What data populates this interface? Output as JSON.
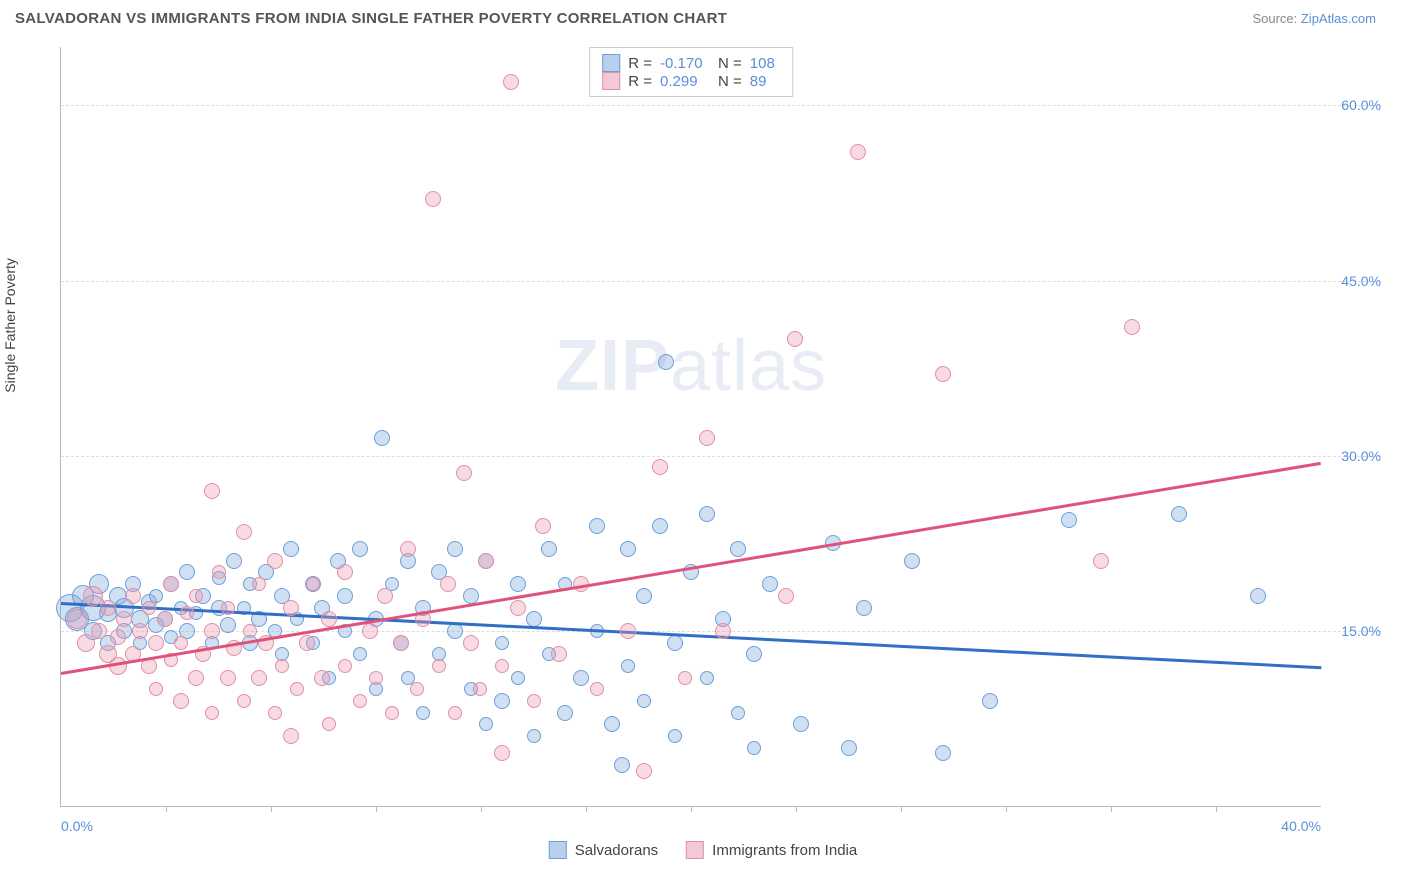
{
  "title": "SALVADORAN VS IMMIGRANTS FROM INDIA SINGLE FATHER POVERTY CORRELATION CHART",
  "source_prefix": "Source: ",
  "source_link": "ZipAtlas.com",
  "ylabel": "Single Father Poverty",
  "watermark_a": "ZIP",
  "watermark_b": "atlas",
  "chart": {
    "type": "scatter",
    "xlim": [
      0,
      40
    ],
    "ylim": [
      0,
      65
    ],
    "x_ticks_minor": [
      3.33,
      6.67,
      10,
      13.33,
      16.67,
      20,
      23.33,
      26.67,
      30,
      33.33,
      36.67
    ],
    "x_tick_labels": [
      {
        "x": 0,
        "text": "0.0%",
        "align": "left"
      },
      {
        "x": 40,
        "text": "40.0%",
        "align": "right"
      }
    ],
    "y_gridlines": [
      15,
      30,
      45,
      60
    ],
    "y_tick_labels": [
      {
        "y": 15,
        "text": "15.0%"
      },
      {
        "y": 30,
        "text": "30.0%"
      },
      {
        "y": 45,
        "text": "45.0%"
      },
      {
        "y": 60,
        "text": "60.0%"
      }
    ],
    "background_color": "#ffffff",
    "grid_color": "#dddddd",
    "axis_color": "#bbbbbb",
    "tick_label_color": "#5b8fd6"
  },
  "series": [
    {
      "name": "Salvadorans",
      "fill": "rgba(120,165,220,0.35)",
      "stroke": "#6f9fd8",
      "line_color": "#2f6fc5",
      "swatch_fill": "#b9d0ec",
      "swatch_stroke": "#6f9fd8",
      "stats": {
        "R": "-0.170",
        "N": "108"
      },
      "trend": {
        "x1": 0,
        "y1": 17.5,
        "x2": 40,
        "y2": 12.0
      },
      "points": [
        {
          "x": 0.3,
          "y": 17,
          "r": 14
        },
        {
          "x": 0.5,
          "y": 16,
          "r": 12
        },
        {
          "x": 0.7,
          "y": 18,
          "r": 11
        },
        {
          "x": 1,
          "y": 17,
          "r": 13
        },
        {
          "x": 1,
          "y": 15,
          "r": 9
        },
        {
          "x": 1.2,
          "y": 19,
          "r": 10
        },
        {
          "x": 1.5,
          "y": 16.5,
          "r": 9
        },
        {
          "x": 1.5,
          "y": 14,
          "r": 8
        },
        {
          "x": 1.8,
          "y": 18,
          "r": 9
        },
        {
          "x": 2,
          "y": 15,
          "r": 8
        },
        {
          "x": 2,
          "y": 17,
          "r": 10
        },
        {
          "x": 2.3,
          "y": 19,
          "r": 8
        },
        {
          "x": 2.5,
          "y": 16,
          "r": 9
        },
        {
          "x": 2.5,
          "y": 14,
          "r": 7
        },
        {
          "x": 2.8,
          "y": 17.5,
          "r": 8
        },
        {
          "x": 3,
          "y": 15.5,
          "r": 8
        },
        {
          "x": 3,
          "y": 18,
          "r": 7
        },
        {
          "x": 3.3,
          "y": 16,
          "r": 8
        },
        {
          "x": 3.5,
          "y": 14.5,
          "r": 7
        },
        {
          "x": 3.5,
          "y": 19,
          "r": 8
        },
        {
          "x": 3.8,
          "y": 17,
          "r": 7
        },
        {
          "x": 4,
          "y": 15,
          "r": 8
        },
        {
          "x": 4,
          "y": 20,
          "r": 8
        },
        {
          "x": 4.3,
          "y": 16.5,
          "r": 7
        },
        {
          "x": 4.5,
          "y": 18,
          "r": 8
        },
        {
          "x": 4.8,
          "y": 14,
          "r": 7
        },
        {
          "x": 5,
          "y": 17,
          "r": 8
        },
        {
          "x": 5,
          "y": 19.5,
          "r": 7
        },
        {
          "x": 5.3,
          "y": 15.5,
          "r": 8
        },
        {
          "x": 5.5,
          "y": 21,
          "r": 8
        },
        {
          "x": 5.8,
          "y": 17,
          "r": 7
        },
        {
          "x": 6,
          "y": 14,
          "r": 8
        },
        {
          "x": 6,
          "y": 19,
          "r": 7
        },
        {
          "x": 6.3,
          "y": 16,
          "r": 8
        },
        {
          "x": 6.5,
          "y": 20,
          "r": 8
        },
        {
          "x": 6.8,
          "y": 15,
          "r": 7
        },
        {
          "x": 7,
          "y": 18,
          "r": 8
        },
        {
          "x": 7,
          "y": 13,
          "r": 7
        },
        {
          "x": 7.3,
          "y": 22,
          "r": 8
        },
        {
          "x": 7.5,
          "y": 16,
          "r": 7
        },
        {
          "x": 8,
          "y": 19,
          "r": 8
        },
        {
          "x": 8,
          "y": 14,
          "r": 7
        },
        {
          "x": 8.3,
          "y": 17,
          "r": 8
        },
        {
          "x": 8.5,
          "y": 11,
          "r": 7
        },
        {
          "x": 8.8,
          "y": 21,
          "r": 8
        },
        {
          "x": 9,
          "y": 15,
          "r": 7
        },
        {
          "x": 9,
          "y": 18,
          "r": 8
        },
        {
          "x": 9.5,
          "y": 13,
          "r": 7
        },
        {
          "x": 9.5,
          "y": 22,
          "r": 8
        },
        {
          "x": 10,
          "y": 16,
          "r": 8
        },
        {
          "x": 10,
          "y": 10,
          "r": 7
        },
        {
          "x": 10.2,
          "y": 31.5,
          "r": 8
        },
        {
          "x": 10.5,
          "y": 19,
          "r": 7
        },
        {
          "x": 10.8,
          "y": 14,
          "r": 8
        },
        {
          "x": 11,
          "y": 21,
          "r": 8
        },
        {
          "x": 11,
          "y": 11,
          "r": 7
        },
        {
          "x": 11.5,
          "y": 17,
          "r": 8
        },
        {
          "x": 11.5,
          "y": 8,
          "r": 7
        },
        {
          "x": 12,
          "y": 20,
          "r": 8
        },
        {
          "x": 12,
          "y": 13,
          "r": 7
        },
        {
          "x": 12.5,
          "y": 15,
          "r": 8
        },
        {
          "x": 12.5,
          "y": 22,
          "r": 8
        },
        {
          "x": 13,
          "y": 10,
          "r": 7
        },
        {
          "x": 13,
          "y": 18,
          "r": 8
        },
        {
          "x": 13.5,
          "y": 7,
          "r": 7
        },
        {
          "x": 13.5,
          "y": 21,
          "r": 8
        },
        {
          "x": 14,
          "y": 14,
          "r": 7
        },
        {
          "x": 14,
          "y": 9,
          "r": 8
        },
        {
          "x": 14.5,
          "y": 19,
          "r": 8
        },
        {
          "x": 14.5,
          "y": 11,
          "r": 7
        },
        {
          "x": 15,
          "y": 16,
          "r": 8
        },
        {
          "x": 15,
          "y": 6,
          "r": 7
        },
        {
          "x": 15.5,
          "y": 22,
          "r": 8
        },
        {
          "x": 15.5,
          "y": 13,
          "r": 7
        },
        {
          "x": 16,
          "y": 8,
          "r": 8
        },
        {
          "x": 16,
          "y": 19,
          "r": 7
        },
        {
          "x": 16.5,
          "y": 11,
          "r": 8
        },
        {
          "x": 17,
          "y": 24,
          "r": 8
        },
        {
          "x": 17,
          "y": 15,
          "r": 7
        },
        {
          "x": 17.5,
          "y": 7,
          "r": 8
        },
        {
          "x": 17.8,
          "y": 3.5,
          "r": 8
        },
        {
          "x": 18,
          "y": 22,
          "r": 8
        },
        {
          "x": 18,
          "y": 12,
          "r": 7
        },
        {
          "x": 18.5,
          "y": 18,
          "r": 8
        },
        {
          "x": 18.5,
          "y": 9,
          "r": 7
        },
        {
          "x": 19,
          "y": 24,
          "r": 8
        },
        {
          "x": 19.2,
          "y": 38,
          "r": 8
        },
        {
          "x": 19.5,
          "y": 14,
          "r": 8
        },
        {
          "x": 19.5,
          "y": 6,
          "r": 7
        },
        {
          "x": 20,
          "y": 20,
          "r": 8
        },
        {
          "x": 20.5,
          "y": 11,
          "r": 7
        },
        {
          "x": 20.5,
          "y": 25,
          "r": 8
        },
        {
          "x": 21,
          "y": 16,
          "r": 8
        },
        {
          "x": 21.5,
          "y": 8,
          "r": 7
        },
        {
          "x": 21.5,
          "y": 22,
          "r": 8
        },
        {
          "x": 22,
          "y": 13,
          "r": 8
        },
        {
          "x": 22,
          "y": 5,
          "r": 7
        },
        {
          "x": 22.5,
          "y": 19,
          "r": 8
        },
        {
          "x": 23.5,
          "y": 7,
          "r": 8
        },
        {
          "x": 24.5,
          "y": 22.5,
          "r": 8
        },
        {
          "x": 25,
          "y": 5,
          "r": 8
        },
        {
          "x": 25.5,
          "y": 17,
          "r": 8
        },
        {
          "x": 27,
          "y": 21,
          "r": 8
        },
        {
          "x": 28,
          "y": 4.5,
          "r": 8
        },
        {
          "x": 29.5,
          "y": 9,
          "r": 8
        },
        {
          "x": 32,
          "y": 24.5,
          "r": 8
        },
        {
          "x": 35.5,
          "y": 25,
          "r": 8
        },
        {
          "x": 38,
          "y": 18,
          "r": 8
        }
      ]
    },
    {
      "name": "Immigrants from India",
      "fill": "rgba(235,150,175,0.35)",
      "stroke": "#e38fa8",
      "line_color": "#e0527a",
      "swatch_fill": "#f4c9d6",
      "swatch_stroke": "#e38fa8",
      "stats": {
        "R": "0.299",
        "N": "89"
      },
      "trend": {
        "x1": 0,
        "y1": 11.5,
        "x2": 40,
        "y2": 29.5
      },
      "points": [
        {
          "x": 0.5,
          "y": 16,
          "r": 10
        },
        {
          "x": 0.8,
          "y": 14,
          "r": 9
        },
        {
          "x": 1,
          "y": 18,
          "r": 10
        },
        {
          "x": 1.2,
          "y": 15,
          "r": 8
        },
        {
          "x": 1.5,
          "y": 13,
          "r": 9
        },
        {
          "x": 1.5,
          "y": 17,
          "r": 8
        },
        {
          "x": 1.8,
          "y": 14.5,
          "r": 8
        },
        {
          "x": 1.8,
          "y": 12,
          "r": 9
        },
        {
          "x": 2,
          "y": 16,
          "r": 8
        },
        {
          "x": 2.3,
          "y": 13,
          "r": 8
        },
        {
          "x": 2.3,
          "y": 18,
          "r": 8
        },
        {
          "x": 2.5,
          "y": 15,
          "r": 8
        },
        {
          "x": 2.8,
          "y": 12,
          "r": 8
        },
        {
          "x": 2.8,
          "y": 17,
          "r": 7
        },
        {
          "x": 3,
          "y": 14,
          "r": 8
        },
        {
          "x": 3,
          "y": 10,
          "r": 7
        },
        {
          "x": 3.3,
          "y": 16,
          "r": 8
        },
        {
          "x": 3.5,
          "y": 12.5,
          "r": 7
        },
        {
          "x": 3.5,
          "y": 19,
          "r": 8
        },
        {
          "x": 3.8,
          "y": 14,
          "r": 7
        },
        {
          "x": 3.8,
          "y": 9,
          "r": 8
        },
        {
          "x": 4,
          "y": 16.5,
          "r": 7
        },
        {
          "x": 4.3,
          "y": 11,
          "r": 8
        },
        {
          "x": 4.3,
          "y": 18,
          "r": 7
        },
        {
          "x": 4.5,
          "y": 13,
          "r": 8
        },
        {
          "x": 4.8,
          "y": 8,
          "r": 7
        },
        {
          "x": 4.8,
          "y": 15,
          "r": 8
        },
        {
          "x": 4.8,
          "y": 27,
          "r": 8
        },
        {
          "x": 5,
          "y": 20,
          "r": 7
        },
        {
          "x": 5.3,
          "y": 11,
          "r": 8
        },
        {
          "x": 5.3,
          "y": 17,
          "r": 7
        },
        {
          "x": 5.5,
          "y": 13.5,
          "r": 8
        },
        {
          "x": 5.8,
          "y": 9,
          "r": 7
        },
        {
          "x": 5.8,
          "y": 23.5,
          "r": 8
        },
        {
          "x": 6,
          "y": 15,
          "r": 7
        },
        {
          "x": 6.3,
          "y": 11,
          "r": 8
        },
        {
          "x": 6.3,
          "y": 19,
          "r": 7
        },
        {
          "x": 6.5,
          "y": 14,
          "r": 8
        },
        {
          "x": 6.8,
          "y": 8,
          "r": 7
        },
        {
          "x": 6.8,
          "y": 21,
          "r": 8
        },
        {
          "x": 7,
          "y": 12,
          "r": 7
        },
        {
          "x": 7.3,
          "y": 17,
          "r": 8
        },
        {
          "x": 7.3,
          "y": 6,
          "r": 8
        },
        {
          "x": 7.5,
          "y": 10,
          "r": 7
        },
        {
          "x": 7.8,
          "y": 14,
          "r": 8
        },
        {
          "x": 8,
          "y": 19,
          "r": 7
        },
        {
          "x": 8.3,
          "y": 11,
          "r": 8
        },
        {
          "x": 8.5,
          "y": 7,
          "r": 7
        },
        {
          "x": 8.5,
          "y": 16,
          "r": 8
        },
        {
          "x": 9,
          "y": 12,
          "r": 7
        },
        {
          "x": 9,
          "y": 20,
          "r": 8
        },
        {
          "x": 9.5,
          "y": 9,
          "r": 7
        },
        {
          "x": 9.8,
          "y": 15,
          "r": 8
        },
        {
          "x": 10,
          "y": 11,
          "r": 7
        },
        {
          "x": 10.3,
          "y": 18,
          "r": 8
        },
        {
          "x": 10.5,
          "y": 8,
          "r": 7
        },
        {
          "x": 10.8,
          "y": 14,
          "r": 8
        },
        {
          "x": 11,
          "y": 22,
          "r": 8
        },
        {
          "x": 11.3,
          "y": 10,
          "r": 7
        },
        {
          "x": 11.5,
          "y": 16,
          "r": 8
        },
        {
          "x": 11.8,
          "y": 52,
          "r": 8
        },
        {
          "x": 12,
          "y": 12,
          "r": 7
        },
        {
          "x": 12.3,
          "y": 19,
          "r": 8
        },
        {
          "x": 12.5,
          "y": 8,
          "r": 7
        },
        {
          "x": 12.8,
          "y": 28.5,
          "r": 8
        },
        {
          "x": 13,
          "y": 14,
          "r": 8
        },
        {
          "x": 13.3,
          "y": 10,
          "r": 7
        },
        {
          "x": 13.5,
          "y": 21,
          "r": 8
        },
        {
          "x": 14,
          "y": 12,
          "r": 7
        },
        {
          "x": 14,
          "y": 4.5,
          "r": 8
        },
        {
          "x": 14.3,
          "y": 62,
          "r": 8
        },
        {
          "x": 14.5,
          "y": 17,
          "r": 8
        },
        {
          "x": 15,
          "y": 9,
          "r": 7
        },
        {
          "x": 15.3,
          "y": 24,
          "r": 8
        },
        {
          "x": 15.8,
          "y": 13,
          "r": 8
        },
        {
          "x": 16.5,
          "y": 19,
          "r": 8
        },
        {
          "x": 17,
          "y": 10,
          "r": 7
        },
        {
          "x": 18,
          "y": 15,
          "r": 8
        },
        {
          "x": 18.5,
          "y": 3,
          "r": 8
        },
        {
          "x": 19,
          "y": 29,
          "r": 8
        },
        {
          "x": 19.8,
          "y": 11,
          "r": 7
        },
        {
          "x": 20.5,
          "y": 31.5,
          "r": 8
        },
        {
          "x": 21,
          "y": 15,
          "r": 8
        },
        {
          "x": 23,
          "y": 18,
          "r": 8
        },
        {
          "x": 23.3,
          "y": 40,
          "r": 8
        },
        {
          "x": 25.3,
          "y": 56,
          "r": 8
        },
        {
          "x": 28,
          "y": 37,
          "r": 8
        },
        {
          "x": 33,
          "y": 21,
          "r": 8
        },
        {
          "x": 34,
          "y": 41,
          "r": 8
        }
      ]
    }
  ],
  "legend": {
    "r_label": "R =",
    "n_label": "N ="
  }
}
